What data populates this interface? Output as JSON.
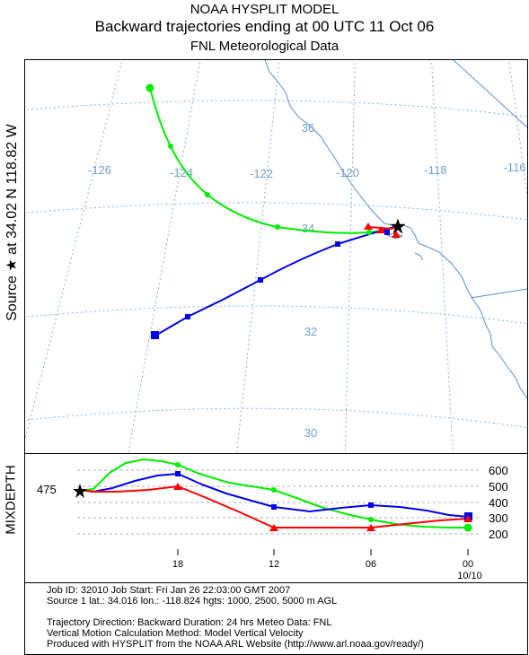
{
  "header": {
    "line1": "NOAA HYSPLIT MODEL",
    "line2": "Backward trajectories ending at 00 UTC 11 Oct 06",
    "line3": "FNL  Meteorological Data"
  },
  "side_label": "Source ★ at   34.02 N  118.82 W",
  "map": {
    "longitude_labels": [
      "-126",
      "-124",
      "-122",
      "-120",
      "-118",
      "-116"
    ],
    "latitude_labels": [
      "36",
      "34",
      "32",
      "30"
    ],
    "colors": {
      "grid": "#7ba7d4",
      "coast": "#5b8fc4",
      "red": "#ff0000",
      "blue": "#0000ee",
      "green": "#00ee00"
    }
  },
  "profile": {
    "title": "MIXDEPTH",
    "mixdepth_value": "475",
    "y_tick_labels": [
      "600",
      "500",
      "400",
      "300",
      "200"
    ],
    "x_tick_labels": [
      "18",
      "12",
      "06",
      "00"
    ],
    "date_label": "10/10"
  },
  "footer": {
    "job": "Job ID: 32010          Job Start: Fri Jan 26 22:03:00 GMT 2007",
    "source": "Source 1 lat.: 34.016  lon.: -118.824  hgts: 1000, 2500, 5000 m AGL",
    "direction": "Trajectory Direction: Backward    Duration: 24 hrs     Meteo Data: FNL",
    "vertical": "Vertical Motion Calculation Method: Model Vertical Velocity",
    "produced": "Produced with HYSPLIT from the NOAA ARL Website (http://www.arl.noaa.gov/ready/)"
  },
  "trajectories": [
    {
      "name": "1000 m AGL",
      "color": "red",
      "points": [
        [
          -118.82,
          34.02
        ],
        [
          -118.9,
          33.92
        ],
        [
          -119.1,
          33.96
        ],
        [
          -119.4,
          34.06
        ],
        [
          -119.2,
          34.02
        ],
        [
          -119.1,
          34.0
        ]
      ]
    },
    {
      "name": "2500 m AGL",
      "color": "blue",
      "points": [
        [
          -118.82,
          34.02
        ],
        [
          -119.4,
          33.8
        ],
        [
          -120.1,
          33.55
        ],
        [
          -121.3,
          32.82
        ],
        [
          -122.8,
          32.05
        ],
        [
          -123.4,
          31.82
        ],
        [
          -124.2,
          31.6
        ]
      ]
    },
    {
      "name": "5000 m AGL",
      "color": "green",
      "points": [
        [
          -118.82,
          34.02
        ],
        [
          -119.4,
          33.95
        ],
        [
          -120.8,
          33.93
        ],
        [
          -122.3,
          34.15
        ],
        [
          -123.8,
          34.98
        ],
        [
          -124.7,
          35.9
        ],
        [
          -125.1,
          36.95
        ]
      ]
    }
  ]
}
